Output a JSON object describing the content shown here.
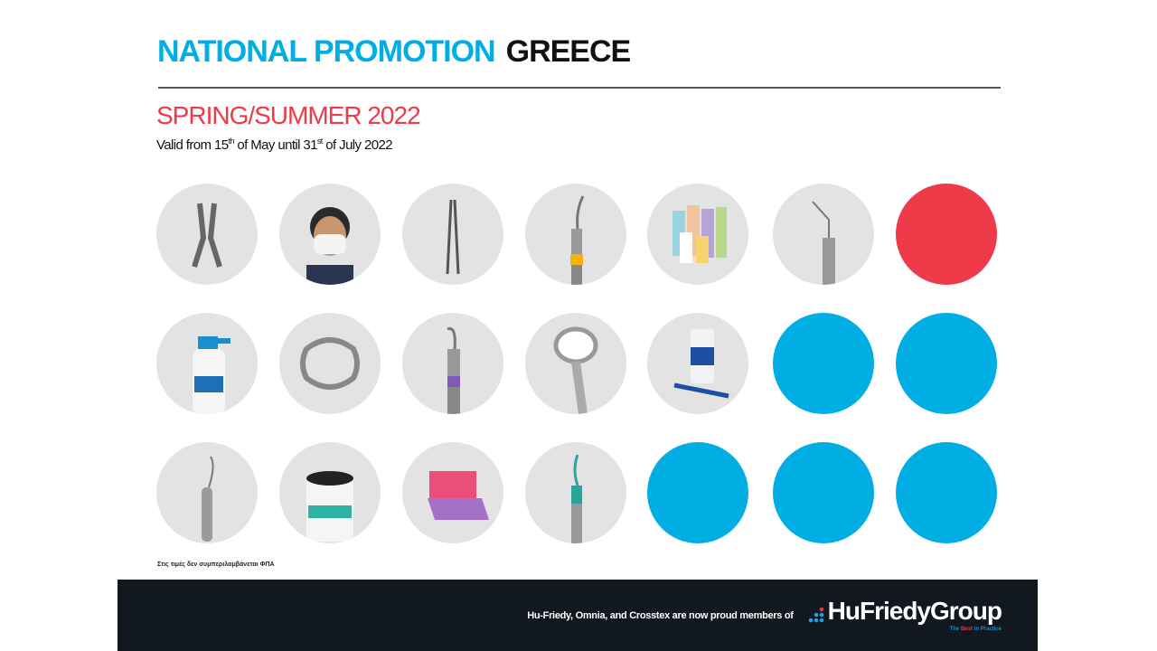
{
  "header": {
    "title_blue": "NATIONAL PROMOTION",
    "title_black": "GREECE",
    "season": "SPRING/SUMMER 2022",
    "valid": {
      "p1": "Valid from 15",
      "s1": "th",
      "p2": " of May until 31",
      "s2": "st",
      "p3": " of July 2022"
    }
  },
  "colors": {
    "blue": "#00aee3",
    "red": "#ef3a4a",
    "grey": "#e3e3e3",
    "footer": "#121820"
  },
  "grid": [
    [
      "forceps",
      "mask-person",
      "needle-holder",
      "instrument-yellow",
      "cups",
      "explorer",
      "red-circle"
    ],
    [
      "spray-bottle",
      "rubber-dam-clamp",
      "scaler-purple",
      "mouth-mirror",
      "bottle-pen",
      "blue-circle",
      "blue-circle"
    ],
    [
      "explorer-probe",
      "wipes-canister",
      "rubber-dam-sheets",
      "instrument-teal",
      "blue-circle",
      "blue-circle",
      "blue-circle"
    ]
  ],
  "note": "Στις τιμές δεν συμπεριλαμβάνεται ΦΠΑ",
  "footer": {
    "text": "Hu-Friedy, Omnia, and Crosstex are now proud members of",
    "logo": "HuFriedyGroup",
    "tag_a": "The ",
    "tag_b": "Best",
    "tag_c": " in Practice"
  }
}
